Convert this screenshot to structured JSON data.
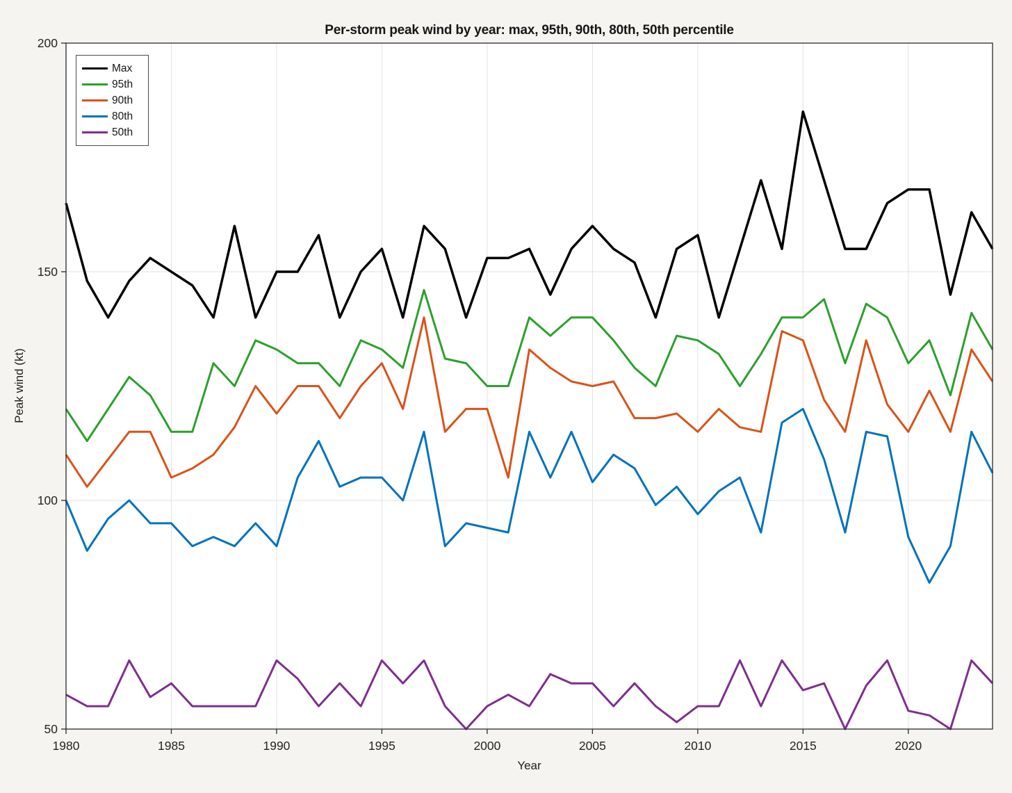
{
  "window": {
    "background_color": "#f5f4f1",
    "plot_background_color": "#ffffff",
    "grid_color": "#e2e2e2",
    "axis_color": "#2a2a2a",
    "tick_label_color": "#242424"
  },
  "chart_data": {
    "type": "line",
    "title": "Per-storm peak wind by year: max, 95th, 90th, 80th, 50th percentile",
    "xlabel": "Year",
    "ylabel": "Peak wind (kt)",
    "xlim": [
      1980,
      2024
    ],
    "ylim": [
      50,
      200
    ],
    "grid": true,
    "legend_position": "top-left",
    "x_ticks": [
      1980,
      1985,
      1990,
      1995,
      2000,
      2005,
      2010,
      2015,
      2020
    ],
    "y_ticks": [
      50,
      100,
      150,
      200
    ],
    "x": [
      1980,
      1981,
      1982,
      1983,
      1984,
      1985,
      1986,
      1987,
      1988,
      1989,
      1990,
      1991,
      1992,
      1993,
      1994,
      1995,
      1996,
      1997,
      1998,
      1999,
      2000,
      2001,
      2002,
      2003,
      2004,
      2005,
      2006,
      2007,
      2008,
      2009,
      2010,
      2011,
      2012,
      2013,
      2014,
      2015,
      2016,
      2017,
      2018,
      2019,
      2020,
      2021,
      2022,
      2023,
      2024
    ],
    "series": [
      {
        "name": "Max",
        "color": "#000000",
        "line_width": 3.5,
        "values": [
          165,
          148,
          140,
          148,
          153,
          150,
          147,
          140,
          160,
          140,
          150,
          150,
          158,
          140,
          150,
          155,
          140,
          160,
          155,
          140,
          153,
          153,
          155,
          145,
          155,
          160,
          155,
          152,
          140,
          155,
          158,
          140,
          155,
          170,
          155,
          185,
          170,
          155,
          155,
          165,
          168,
          168,
          145,
          163,
          155
        ]
      },
      {
        "name": "95th",
        "color": "#2ca02c",
        "line_width": 3,
        "values": [
          120,
          113,
          120,
          127,
          123,
          115,
          115,
          130,
          125,
          135,
          133,
          130,
          130,
          125,
          135,
          133,
          129,
          146,
          131,
          130,
          125,
          125,
          140,
          136,
          140,
          140,
          135,
          129,
          125,
          136,
          135,
          132,
          125,
          132,
          140,
          140,
          144,
          130,
          143,
          140,
          130,
          135,
          123,
          141,
          133
        ]
      },
      {
        "name": "90th",
        "color": "#d95319",
        "line_width": 3,
        "values": [
          110,
          103,
          109,
          115,
          115,
          105,
          107,
          110,
          116,
          125,
          119,
          125,
          125,
          118,
          125,
          130,
          120,
          140,
          115,
          120,
          120,
          105,
          133,
          129,
          126,
          125,
          126,
          118,
          118,
          119,
          115,
          120,
          116,
          115,
          137,
          135,
          122,
          115,
          135,
          121,
          115,
          124,
          115,
          133,
          126
        ]
      },
      {
        "name": "80th",
        "color": "#0072bd",
        "line_width": 3,
        "values": [
          100,
          89,
          96,
          100,
          95,
          95,
          90,
          92,
          90,
          95,
          90,
          105,
          113,
          103,
          105,
          105,
          100,
          115,
          90,
          95,
          94,
          93,
          115,
          105,
          115,
          104,
          110,
          107,
          99,
          103,
          97,
          102,
          105,
          93,
          117,
          120,
          109,
          93,
          115,
          114,
          92,
          82,
          90,
          115,
          106
        ]
      },
      {
        "name": "50th",
        "color": "#7e2f8e",
        "line_width": 3,
        "values": [
          57.5,
          55,
          55,
          65,
          57,
          60,
          55,
          55,
          55,
          55,
          65,
          61,
          55,
          60,
          55,
          65,
          60,
          65,
          55,
          50,
          55,
          57.5,
          55,
          62,
          60,
          60,
          55,
          60,
          55,
          51.5,
          55,
          55,
          65,
          55,
          65,
          58.5,
          60,
          50,
          59.5,
          65,
          54,
          53,
          50,
          65,
          60
        ]
      }
    ]
  },
  "legend": {
    "entries": [
      "Max",
      "95th",
      "90th",
      "80th",
      "50th"
    ]
  }
}
